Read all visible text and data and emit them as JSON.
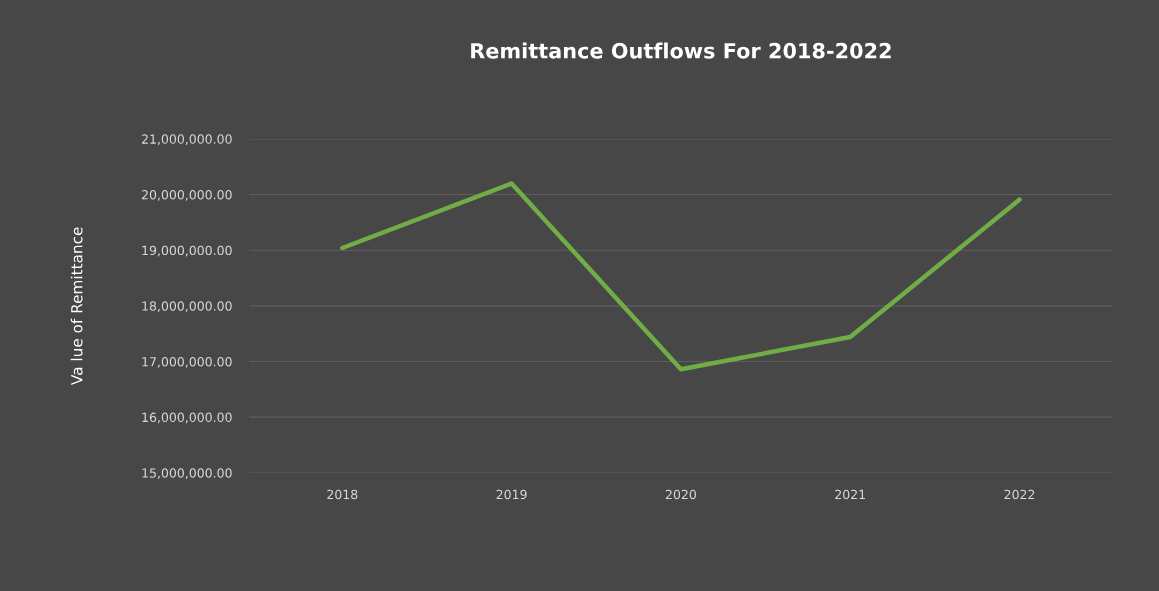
{
  "chart_data": {
    "type": "line",
    "title": "Remittance Outflows For 2018-2022",
    "ylabel": "Va lue of Remittance",
    "categories": [
      "2018",
      "2019",
      "2020",
      "2021",
      "2022"
    ],
    "series": [
      {
        "color": "#70ad47",
        "values": [
          19040000,
          20200000,
          16860000,
          17440000,
          19910000
        ]
      }
    ],
    "ylim": [
      15000000,
      21000000
    ],
    "yticks": [
      {
        "value": 15000000,
        "label": "15,000,000.00"
      },
      {
        "value": 16000000,
        "label": "16,000,000.00"
      },
      {
        "value": 17000000,
        "label": "17,000,000.00"
      },
      {
        "value": 18000000,
        "label": "18,000,000.00"
      },
      {
        "value": 19000000,
        "label": "19,000,000.00"
      },
      {
        "value": 20000000,
        "label": "20,000,000.00"
      },
      {
        "value": 21000000,
        "label": "21,000,000.00"
      }
    ],
    "grid": "y",
    "marker": "none",
    "line_style": "solid"
  }
}
